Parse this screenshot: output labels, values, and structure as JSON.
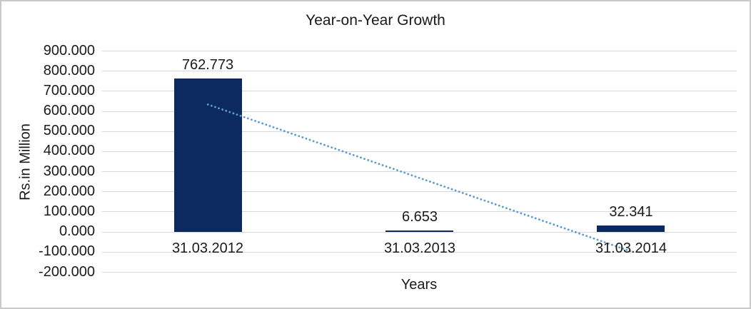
{
  "chart_data": {
    "type": "bar",
    "title": "Year-on-Year Growth",
    "xlabel": "Years",
    "ylabel": "Rs.in Million",
    "categories": [
      "31.03.2012",
      "31.03.2013",
      "31.03.2014"
    ],
    "values": [
      762.773,
      6.653,
      32.341
    ],
    "data_labels": [
      "762.773",
      "6.653",
      "32.341"
    ],
    "ylim": [
      -200,
      900
    ],
    "ytick_step": 100,
    "yticks": [
      "900.000",
      "800.000",
      "700.000",
      "600.000",
      "500.000",
      "400.000",
      "300.000",
      "200.000",
      "100.000",
      "0.000",
      "-100.000",
      "-200.000"
    ],
    "grid": true,
    "legend": false,
    "bar_color": "#0d2a5e",
    "gridline_color": "#d9d9d9",
    "text_color": "#1a1a1a",
    "trendline": {
      "style": "dotted",
      "color": "#5b9bd5",
      "start_category_index": 0,
      "end_category_index": 2,
      "start_value": 632.5,
      "end_value": -98.0
    }
  },
  "frame": {
    "border_color": "#c9c9c9",
    "background": "#ffffff"
  }
}
